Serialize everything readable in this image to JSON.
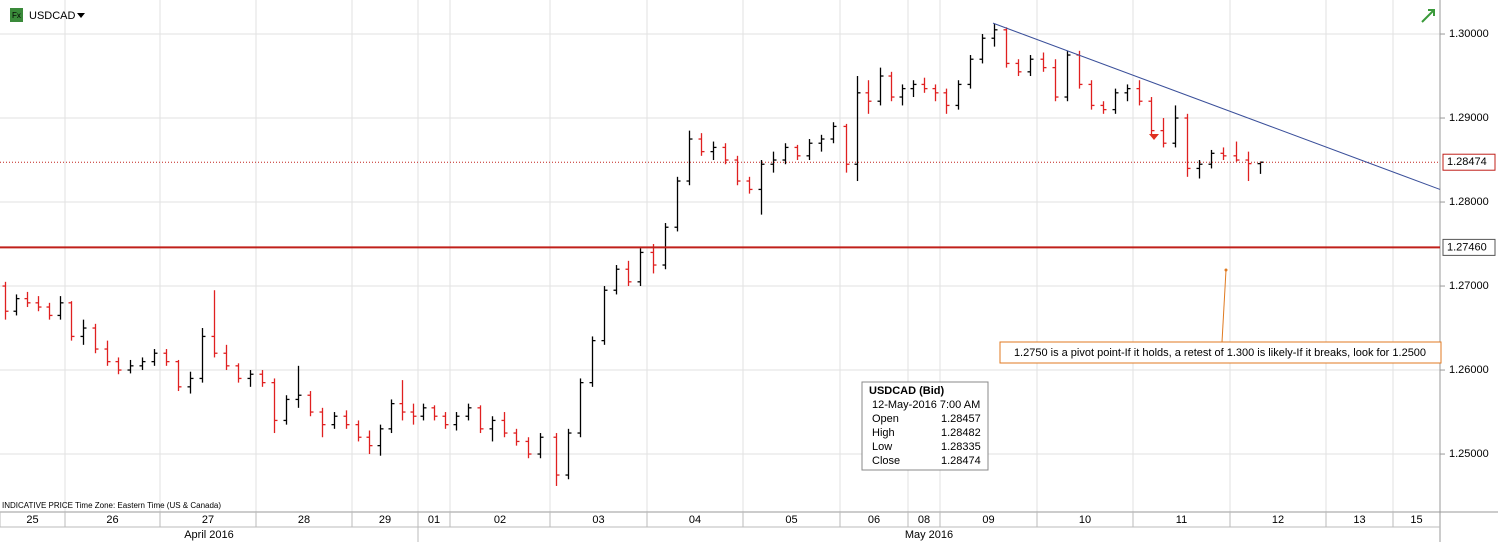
{
  "chart_data": {
    "type": "ohlc",
    "title": "USDCAD",
    "footer": "INDICATIVE PRICE   Time Zone: Eastern Time (US & Canada)",
    "ylim": [
      1.2431,
      1.30405
    ],
    "yticks": [
      {
        "value": 1.25,
        "label": "1.25000"
      },
      {
        "value": 1.26,
        "label": "1.26000"
      },
      {
        "value": 1.27,
        "label": "1.27000"
      },
      {
        "value": 1.28,
        "label": "1.28000"
      },
      {
        "value": 1.29,
        "label": "1.29000"
      },
      {
        "value": 1.3,
        "label": "1.30000"
      }
    ],
    "grid": true,
    "up_color": "#000000",
    "down_color": "#e02020",
    "months": [
      "April 2016",
      "May 2016"
    ],
    "days": [
      {
        "label": "25",
        "bars": [
          [
            1.27,
            1.2705,
            1.266,
            1.267
          ],
          [
            1.267,
            1.269,
            1.2665,
            1.2685
          ],
          [
            1.2685,
            1.2693,
            1.2675,
            1.268
          ],
          [
            1.268,
            1.2688,
            1.267,
            1.2675
          ],
          [
            1.2675,
            1.268,
            1.266,
            1.2665
          ],
          [
            1.2665,
            1.2688,
            1.266,
            1.268
          ]
        ]
      },
      {
        "label": "26",
        "bars": [
          [
            1.268,
            1.2682,
            1.2635,
            1.264
          ],
          [
            1.264,
            1.266,
            1.263,
            1.265
          ],
          [
            1.265,
            1.2655,
            1.262,
            1.2625
          ],
          [
            1.2625,
            1.2635,
            1.2605,
            1.261
          ],
          [
            1.261,
            1.2615,
            1.2595,
            1.26
          ],
          [
            1.26,
            1.2612,
            1.2596,
            1.2605
          ],
          [
            1.2605,
            1.2615,
            1.26,
            1.261
          ],
          [
            1.261,
            1.2625,
            1.2605,
            1.262
          ]
        ]
      },
      {
        "label": "27",
        "bars": [
          [
            1.262,
            1.2625,
            1.2605,
            1.261
          ],
          [
            1.261,
            1.2612,
            1.2575,
            1.258
          ],
          [
            1.258,
            1.2598,
            1.2572,
            1.259
          ],
          [
            1.259,
            1.265,
            1.2585,
            1.264
          ],
          [
            1.264,
            1.2695,
            1.2615,
            1.262
          ],
          [
            1.262,
            1.263,
            1.26,
            1.2605
          ],
          [
            1.2605,
            1.2608,
            1.2585,
            1.259
          ],
          [
            1.259,
            1.26,
            1.258,
            1.2595
          ]
        ]
      },
      {
        "label": "28",
        "bars": [
          [
            1.2595,
            1.26,
            1.258,
            1.2585
          ],
          [
            1.2585,
            1.259,
            1.2525,
            1.254
          ],
          [
            1.254,
            1.257,
            1.2535,
            1.2565
          ],
          [
            1.2565,
            1.2605,
            1.2555,
            1.257
          ],
          [
            1.257,
            1.2575,
            1.2545,
            1.255
          ],
          [
            1.255,
            1.2555,
            1.252,
            1.2535
          ],
          [
            1.2535,
            1.255,
            1.253,
            1.2545
          ],
          [
            1.2545,
            1.2552,
            1.253,
            1.2535
          ]
        ]
      },
      {
        "label": "29",
        "bars": [
          [
            1.2535,
            1.254,
            1.2515,
            1.252
          ],
          [
            1.252,
            1.2528,
            1.25,
            1.251
          ],
          [
            1.251,
            1.2535,
            1.2498,
            1.253
          ],
          [
            1.253,
            1.2565,
            1.2525,
            1.256
          ],
          [
            1.256,
            1.2588,
            1.254,
            1.255
          ],
          [
            1.255,
            1.256,
            1.2535,
            1.2545
          ]
        ]
      },
      {
        "label": "01",
        "bars": [
          [
            1.2545,
            1.256,
            1.254,
            1.2555
          ],
          [
            1.2555,
            1.2558,
            1.254,
            1.2545
          ],
          [
            1.2545,
            1.255,
            1.253,
            1.2535
          ]
        ]
      },
      {
        "label": "02",
        "bars": [
          [
            1.2535,
            1.255,
            1.2528,
            1.2545
          ],
          [
            1.2545,
            1.256,
            1.254,
            1.2555
          ],
          [
            1.2555,
            1.2558,
            1.2525,
            1.253
          ],
          [
            1.253,
            1.2545,
            1.2515,
            1.254
          ],
          [
            1.254,
            1.255,
            1.252,
            1.2525
          ],
          [
            1.2525,
            1.253,
            1.251,
            1.2515
          ],
          [
            1.2515,
            1.252,
            1.2495,
            1.25
          ],
          [
            1.25,
            1.2525,
            1.2495,
            1.252
          ]
        ]
      },
      {
        "label": "03",
        "bars": [
          [
            1.252,
            1.2525,
            1.2462,
            1.2475
          ],
          [
            1.2475,
            1.253,
            1.247,
            1.2525
          ],
          [
            1.2525,
            1.259,
            1.252,
            1.2585
          ],
          [
            1.2585,
            1.264,
            1.258,
            1.2635
          ],
          [
            1.2635,
            1.27,
            1.263,
            1.2695
          ],
          [
            1.2695,
            1.2725,
            1.269,
            1.272
          ],
          [
            1.272,
            1.273,
            1.27,
            1.2705
          ],
          [
            1.2705,
            1.2745,
            1.27,
            1.274
          ]
        ]
      },
      {
        "label": "04",
        "bars": [
          [
            1.274,
            1.275,
            1.2715,
            1.2725
          ],
          [
            1.2725,
            1.2775,
            1.272,
            1.277
          ],
          [
            1.277,
            1.283,
            1.2765,
            1.2825
          ],
          [
            1.2825,
            1.2885,
            1.282,
            1.2875
          ],
          [
            1.2875,
            1.2882,
            1.2855,
            1.286
          ],
          [
            1.286,
            1.2872,
            1.285,
            1.2865
          ],
          [
            1.2865,
            1.287,
            1.2845,
            1.285
          ],
          [
            1.285,
            1.2855,
            1.282,
            1.2825
          ]
        ]
      },
      {
        "label": "05",
        "bars": [
          [
            1.2825,
            1.283,
            1.281,
            1.2815
          ],
          [
            1.2815,
            1.285,
            1.2785,
            1.2845
          ],
          [
            1.2845,
            1.286,
            1.2835,
            1.285
          ],
          [
            1.285,
            1.287,
            1.2845,
            1.2865
          ],
          [
            1.2865,
            1.2868,
            1.285,
            1.2855
          ],
          [
            1.2855,
            1.2875,
            1.285,
            1.287
          ],
          [
            1.287,
            1.288,
            1.286,
            1.2875
          ],
          [
            1.2875,
            1.2895,
            1.287,
            1.289
          ]
        ]
      },
      {
        "label": "06",
        "bars": [
          [
            1.289,
            1.2893,
            1.2835,
            1.2845
          ],
          [
            1.2845,
            1.295,
            1.2825,
            1.293
          ],
          [
            1.293,
            1.2945,
            1.2905,
            1.292
          ],
          [
            1.292,
            1.296,
            1.2915,
            1.295
          ],
          [
            1.295,
            1.2955,
            1.292,
            1.2925
          ],
          [
            1.2925,
            1.294,
            1.2915,
            1.2935
          ]
        ]
      },
      {
        "label": "08",
        "bars": [
          [
            1.2935,
            1.2945,
            1.2925,
            1.294
          ],
          [
            1.294,
            1.2948,
            1.293,
            1.2935
          ],
          [
            1.2935,
            1.294,
            1.292,
            1.293
          ]
        ]
      },
      {
        "label": "09",
        "bars": [
          [
            1.293,
            1.2935,
            1.2905,
            1.2915
          ],
          [
            1.2915,
            1.2945,
            1.291,
            1.294
          ],
          [
            1.294,
            1.2975,
            1.2935,
            1.297
          ],
          [
            1.297,
            1.3,
            1.2965,
            1.2995
          ],
          [
            1.2995,
            1.3012,
            1.2985,
            1.3005
          ],
          [
            1.3005,
            1.3008,
            1.296,
            1.2965
          ],
          [
            1.2965,
            1.297,
            1.295,
            1.2955
          ],
          [
            1.2955,
            1.2975,
            1.295,
            1.297
          ]
        ]
      },
      {
        "label": "10",
        "bars": [
          [
            1.297,
            1.2978,
            1.2955,
            1.296
          ],
          [
            1.296,
            1.297,
            1.292,
            1.2925
          ],
          [
            1.2925,
            1.298,
            1.292,
            1.2975
          ],
          [
            1.2975,
            1.298,
            1.2935,
            1.294
          ],
          [
            1.294,
            1.2945,
            1.291,
            1.2915
          ],
          [
            1.2915,
            1.292,
            1.2905,
            1.291
          ],
          [
            1.291,
            1.2935,
            1.2905,
            1.293
          ],
          [
            1.293,
            1.294,
            1.292,
            1.2935
          ]
        ]
      },
      {
        "label": "11",
        "bars": [
          [
            1.2935,
            1.2945,
            1.2915,
            1.292
          ],
          [
            1.292,
            1.2925,
            1.288,
            1.2885
          ],
          [
            1.2885,
            1.29,
            1.2865,
            1.287
          ],
          [
            1.287,
            1.2915,
            1.2865,
            1.29
          ],
          [
            1.29,
            1.2905,
            1.283,
            1.284
          ],
          [
            1.284,
            1.285,
            1.2828,
            1.2845
          ],
          [
            1.2845,
            1.2862,
            1.284,
            1.2858
          ],
          [
            1.2858,
            1.2865,
            1.285,
            1.2855
          ]
        ]
      },
      {
        "label": "12",
        "bars": [
          [
            1.2855,
            1.2872,
            1.2848,
            1.285
          ],
          [
            1.285,
            1.286,
            1.2825,
            1.28457
          ],
          [
            1.28457,
            1.28482,
            1.28335,
            1.28474
          ]
        ]
      },
      {
        "label": "13",
        "bars": []
      },
      {
        "label": "15",
        "bars": []
      }
    ],
    "support": {
      "value": 1.2746,
      "label": "1.27460"
    },
    "last": 1.28474,
    "trendline": [
      1.3013,
      1.2815
    ],
    "annotation": "1.2750 is a pivot point-If it holds, a retest of 1.300 is likely-If it breaks, look for 1.2500",
    "tooltip": {
      "title": "USDCAD (Bid)",
      "date": "12-May-2016 7:00 AM",
      "labels": [
        "Open",
        "High",
        "Low",
        "Close"
      ]
    }
  }
}
